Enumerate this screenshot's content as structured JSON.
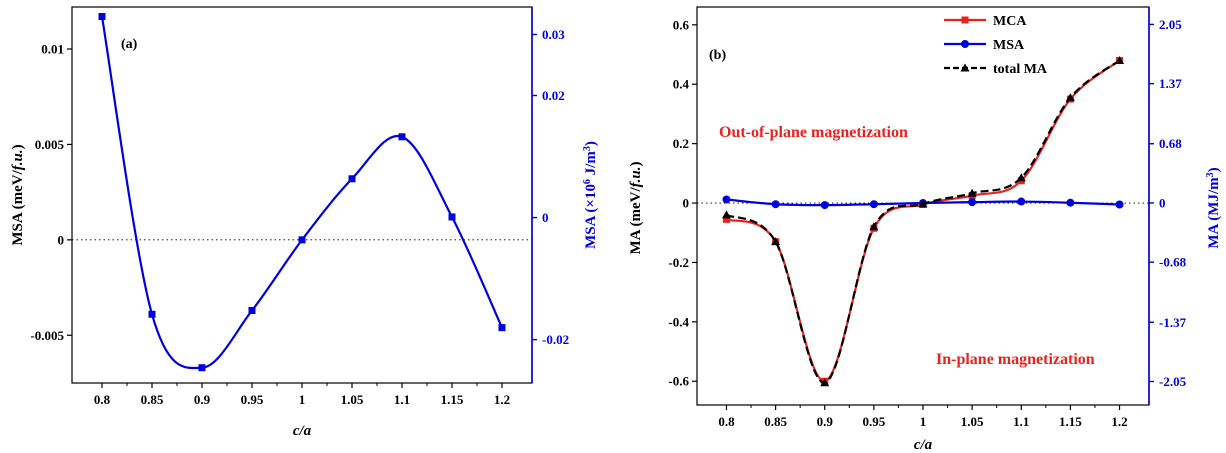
{
  "chart_data": [
    {
      "type": "line",
      "panel_label": "(a)",
      "xlabel": "c/a",
      "ylabel": "MSA (meV/",
      "ylabel_italic": "f.u.",
      "ylabel_end": ")",
      "ylabel_right": "MSA (×10",
      "ylabel_right_sup": "6",
      "ylabel_right_mid": " J/m",
      "ylabel_right_sup2": "3",
      "ylabel_right_end": ")",
      "x_ticks": [
        "0.8",
        "0.85",
        "0.9",
        "0.95",
        "1",
        "1.05",
        "1.1",
        "1.15",
        "1.2"
      ],
      "y_ticks_left": [
        "-0.005",
        "0",
        "0.005",
        "0.01"
      ],
      "y_ticks_right": [
        "-0.02",
        "0",
        "0.02",
        "0.03"
      ],
      "y_ticks_right_values": [
        -0.02,
        0,
        0.02,
        0.03
      ],
      "xlim": [
        0.77,
        1.23
      ],
      "ylim": [
        -0.0075,
        0.0122
      ],
      "ylim_right": [
        -0.0271,
        0.0345
      ],
      "zero_line": true,
      "series_color": "#0000dd",
      "series": [
        {
          "name": "",
          "x": [
            0.8,
            0.85,
            0.9,
            0.95,
            1.0,
            1.05,
            1.1,
            1.15,
            1.2
          ],
          "values": [
            0.0117,
            -0.0039,
            -0.0067,
            -0.0037,
            0.0,
            0.0032,
            0.0054,
            0.0012,
            -0.0046
          ]
        }
      ]
    },
    {
      "type": "line",
      "panel_label": "(b)",
      "xlabel": "c/a",
      "ylabel": "MA (meV/",
      "ylabel_italic": "f.u.",
      "ylabel_end": ")",
      "ylabel_right": "MA (MJ/m",
      "ylabel_right_sup": "3",
      "ylabel_right_end": ")",
      "x_ticks": [
        "0.8",
        "0.85",
        "0.9",
        "0.95",
        "1",
        "1.05",
        "1.1",
        "1.15",
        "1.2"
      ],
      "y_ticks_left": [
        "-0.6",
        "-0.4",
        "-0.2",
        "0",
        "0.2",
        "0.4",
        "0.6"
      ],
      "y_ticks_right": [
        "-2.05",
        "-1.37",
        "-0.68",
        "0",
        "0.68",
        "1.37",
        "2.05"
      ],
      "y_ticks_right_values": [
        -2.05,
        -1.37,
        -0.68,
        0,
        0.68,
        1.37,
        2.05
      ],
      "xlim": [
        0.77,
        1.23
      ],
      "ylim": [
        -0.68,
        0.66
      ],
      "ylim_right": [
        -2.32,
        2.25
      ],
      "zero_line": true,
      "annotations": [
        "Out-of-plane magnetization",
        "In-plane magnetization"
      ],
      "annotation_color": "#e8231f",
      "legend_position": "top-right",
      "series": [
        {
          "name": "MCA",
          "color": "#e8231f",
          "marker": "square",
          "x": [
            0.8,
            0.85,
            0.9,
            0.95,
            1.0,
            1.05,
            1.1,
            1.15,
            1.2
          ],
          "values": [
            -0.055,
            -0.13,
            -0.6,
            -0.085,
            -0.005,
            0.025,
            0.075,
            0.35,
            0.48
          ]
        },
        {
          "name": "MSA",
          "color": "#0000dd",
          "marker": "circle",
          "x": [
            0.8,
            0.85,
            0.9,
            0.95,
            1.0,
            1.05,
            1.1,
            1.15,
            1.2
          ],
          "values": [
            0.012,
            -0.004,
            -0.007,
            -0.004,
            0.0,
            0.003,
            0.005,
            0.001,
            -0.005
          ]
        },
        {
          "name": "total MA",
          "color": "#000000",
          "marker": "triangle",
          "x": [
            0.8,
            0.85,
            0.9,
            0.95,
            1.0,
            1.05,
            1.1,
            1.15,
            1.2
          ],
          "values": [
            -0.04,
            -0.13,
            -0.605,
            -0.08,
            -0.003,
            0.033,
            0.085,
            0.355,
            0.48
          ]
        }
      ]
    }
  ]
}
